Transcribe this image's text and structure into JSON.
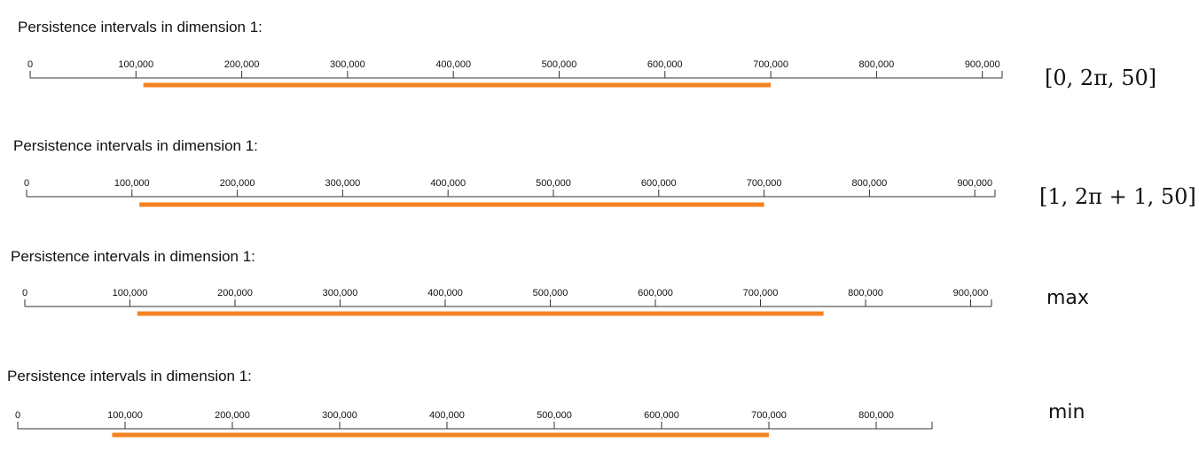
{
  "chart_data": [
    {
      "type": "barcode",
      "title": "Persistence intervals in dimension 1:",
      "ticks": [
        "0",
        "100,000",
        "200,000",
        "300,000",
        "400,000",
        "500,000",
        "600,000",
        "700,000",
        "800,000",
        "900,000"
      ],
      "xlim": [
        0,
        925000
      ],
      "intervals": [
        [
          107000,
          700000
        ]
      ],
      "bar_color": "#f58220",
      "side_label": "[0, 2π, 50]"
    },
    {
      "type": "barcode",
      "title": "Persistence intervals in dimension 1:",
      "ticks": [
        "0",
        "100,000",
        "200,000",
        "300,000",
        "400,000",
        "500,000",
        "600,000",
        "700,000",
        "800,000",
        "900,000"
      ],
      "xlim": [
        0,
        925000
      ],
      "intervals": [
        [
          107000,
          700000
        ]
      ],
      "bar_color": "#f58220",
      "side_label": "[1, 2π + 1, 50]"
    },
    {
      "type": "barcode",
      "title": "Persistence intervals in dimension 1:",
      "ticks": [
        "0",
        "100,000",
        "200,000",
        "300,000",
        "400,000",
        "500,000",
        "600,000",
        "700,000",
        "800,000",
        "900,000"
      ],
      "xlim": [
        0,
        925000
      ],
      "intervals": [
        [
          107000,
          760000
        ]
      ],
      "bar_color": "#f58220",
      "side_label": "max"
    },
    {
      "type": "barcode",
      "title": "Persistence intervals in dimension 1:",
      "ticks": [
        "0",
        "100,000",
        "200,000",
        "300,000",
        "400,000",
        "500,000",
        "600,000",
        "700,000",
        "800,000"
      ],
      "xlim": [
        0,
        855000
      ],
      "intervals": [
        [
          88000,
          700000
        ]
      ],
      "bar_color": "#f58220",
      "side_label": "min"
    }
  ]
}
